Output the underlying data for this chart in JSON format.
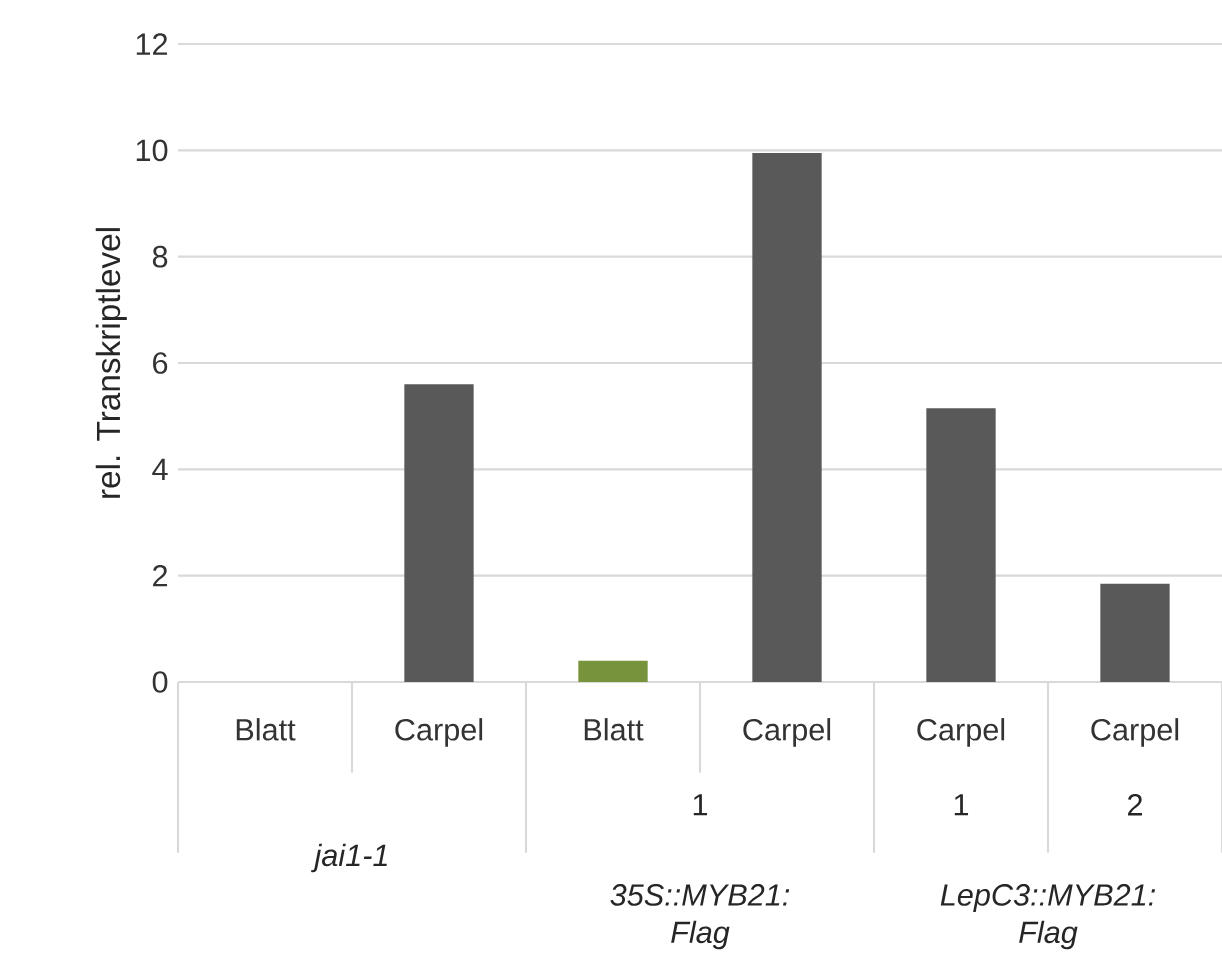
{
  "chart_data": {
    "type": "bar",
    "ylabel": "rel. Transkriptlevel",
    "categories": [
      "Blatt",
      "Carpel",
      "Blatt",
      "Carpel",
      "Carpel",
      "Carpel"
    ],
    "values": [
      0,
      5.6,
      0.4,
      9.95,
      5.15,
      1.85
    ],
    "colors": [
      "#595959",
      "#595959",
      "#77933c",
      "#595959",
      "#595959",
      "#595959"
    ],
    "ylim": [
      0,
      12
    ],
    "yticks": [
      0,
      2,
      4,
      6,
      8,
      10,
      12
    ],
    "grid": "y",
    "annotations": [
      "1",
      "1",
      "2",
      "jai1-1",
      "35S::MYB21: Flag",
      "LepC3::MYB21: Flag"
    ]
  }
}
